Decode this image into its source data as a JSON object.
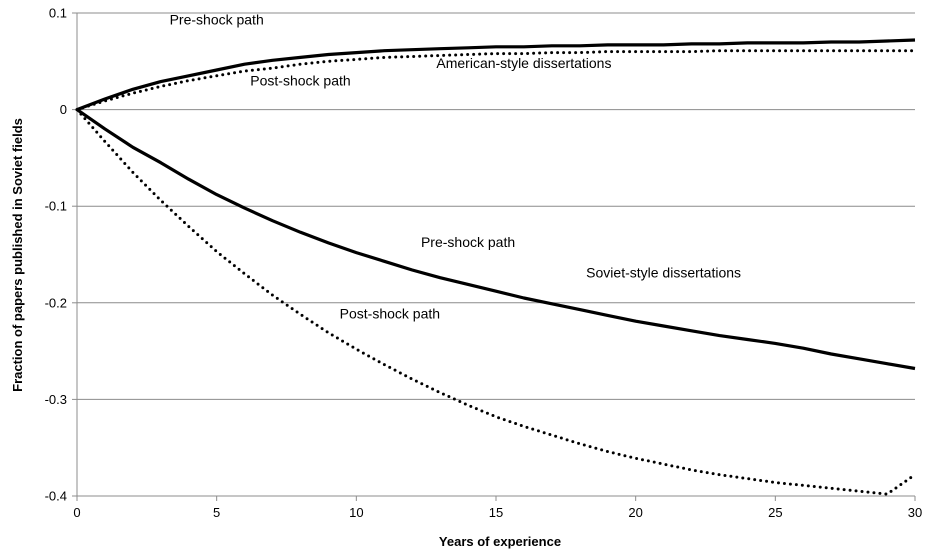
{
  "chart_data": {
    "type": "line",
    "title": "",
    "xlabel": "Years of experience",
    "ylabel": "Fraction of papers published in Soviet fields",
    "xlim": [
      0,
      30
    ],
    "ylim": [
      -0.4,
      0.1
    ],
    "x_ticks": [
      0,
      5,
      10,
      15,
      20,
      25,
      30
    ],
    "y_ticks": [
      0.1,
      0,
      -0.1,
      -0.2,
      -0.3,
      -0.4
    ],
    "x_tick_labels": [
      "0",
      "5",
      "10",
      "15",
      "20",
      "25",
      "30"
    ],
    "y_tick_labels": [
      "0.1",
      "0",
      "-0.1",
      "-0.2",
      "-0.3",
      "-0.4"
    ],
    "grid": "horizontal",
    "legend": "none",
    "x": [
      0,
      1,
      2,
      3,
      4,
      5,
      6,
      7,
      8,
      9,
      10,
      11,
      12,
      13,
      14,
      15,
      16,
      17,
      18,
      19,
      20,
      21,
      22,
      23,
      24,
      25,
      26,
      27,
      28,
      29,
      30
    ],
    "series": [
      {
        "style": "solid",
        "values": [
          0,
          0.011,
          0.021,
          0.029,
          0.035,
          0.041,
          0.047,
          0.051,
          0.054,
          0.057,
          0.059,
          0.061,
          0.062,
          0.063,
          0.064,
          0.065,
          0.065,
          0.066,
          0.066,
          0.067,
          0.067,
          0.067,
          0.068,
          0.068,
          0.069,
          0.069,
          0.069,
          0.07,
          0.07,
          0.071,
          0.072
        ]
      },
      {
        "style": "dotted",
        "values": [
          0,
          0.009,
          0.017,
          0.024,
          0.03,
          0.035,
          0.04,
          0.043,
          0.047,
          0.05,
          0.052,
          0.054,
          0.055,
          0.056,
          0.057,
          0.058,
          0.058,
          0.059,
          0.059,
          0.06,
          0.06,
          0.06,
          0.06,
          0.061,
          0.061,
          0.061,
          0.061,
          0.061,
          0.061,
          0.061,
          0.061
        ]
      },
      {
        "style": "solid",
        "values": [
          0,
          -0.02,
          -0.039,
          -0.055,
          -0.072,
          -0.088,
          -0.102,
          -0.115,
          -0.127,
          -0.138,
          -0.148,
          -0.157,
          -0.166,
          -0.174,
          -0.181,
          -0.188,
          -0.195,
          -0.201,
          -0.207,
          -0.213,
          -0.219,
          -0.224,
          -0.229,
          -0.234,
          -0.238,
          -0.242,
          -0.247,
          -0.253,
          -0.258,
          -0.263,
          -0.268
        ]
      },
      {
        "style": "dotted",
        "values": [
          0,
          -0.033,
          -0.065,
          -0.094,
          -0.121,
          -0.147,
          -0.17,
          -0.192,
          -0.212,
          -0.231,
          -0.248,
          -0.264,
          -0.279,
          -0.293,
          -0.306,
          -0.318,
          -0.328,
          -0.337,
          -0.346,
          -0.354,
          -0.361,
          -0.367,
          -0.373,
          -0.378,
          -0.382,
          -0.386,
          -0.389,
          -0.392,
          -0.395,
          -0.398,
          -0.378
        ]
      }
    ],
    "annotations": [
      {
        "text": "Pre-shock path",
        "x": 5.0,
        "y": 0.088
      },
      {
        "text": "American-style dissertations",
        "x": 16.0,
        "y": 0.043
      },
      {
        "text": "Post-shock path",
        "x": 8.0,
        "y": 0.025
      },
      {
        "text": "Pre-shock path",
        "x": 14.0,
        "y": -0.142
      },
      {
        "text": "Soviet-style dissertations",
        "x": 21.0,
        "y": -0.174
      },
      {
        "text": "Post-shock path",
        "x": 11.2,
        "y": -0.216
      }
    ]
  }
}
